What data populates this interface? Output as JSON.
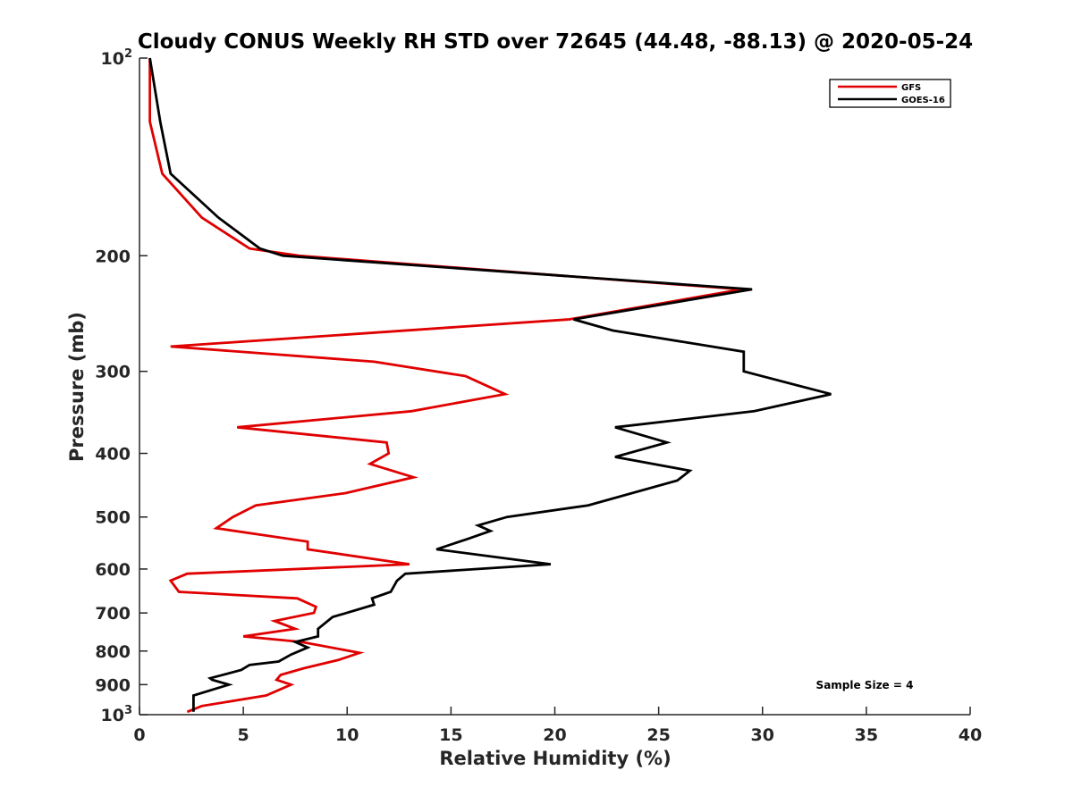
{
  "chart_data": {
    "type": "line",
    "title": "Cloudy CONUS Weekly RH STD over 72645 (44.48, -88.13) @ 2020-05-24",
    "xlabel": "Relative Humidity (%)",
    "ylabel": "Pressure (mb)",
    "xlim": [
      0,
      40
    ],
    "ylim": [
      100,
      1000
    ],
    "y_scale": "log",
    "y_reversed": true,
    "grid": false,
    "legend_position": "top-right",
    "x_ticks": [
      {
        "value": 0,
        "label": "0"
      },
      {
        "value": 5,
        "label": "5"
      },
      {
        "value": 10,
        "label": "10"
      },
      {
        "value": 15,
        "label": "15"
      },
      {
        "value": 20,
        "label": "20"
      },
      {
        "value": 25,
        "label": "25"
      },
      {
        "value": 30,
        "label": "30"
      },
      {
        "value": 35,
        "label": "35"
      },
      {
        "value": 40,
        "label": "40"
      }
    ],
    "y_ticks": [
      {
        "value": 100,
        "base": "10",
        "exp": "2"
      },
      {
        "value": 200,
        "label": "200"
      },
      {
        "value": 300,
        "label": "300"
      },
      {
        "value": 400,
        "label": "400"
      },
      {
        "value": 500,
        "label": "500"
      },
      {
        "value": 600,
        "label": "600"
      },
      {
        "value": 700,
        "label": "700"
      },
      {
        "value": 800,
        "label": "800"
      },
      {
        "value": 900,
        "label": "900"
      },
      {
        "value": 1000,
        "base": "10",
        "exp": "3"
      }
    ],
    "annotation": "Sample Size = 4",
    "series": [
      {
        "name": "GFS",
        "color": "#e00000",
        "points": [
          [
            0.5,
            100
          ],
          [
            0.5,
            125
          ],
          [
            1.1,
            150
          ],
          [
            3.0,
            175
          ],
          [
            5.3,
            195
          ],
          [
            7.7,
            200
          ],
          [
            29.0,
            225
          ],
          [
            20.7,
            250
          ],
          [
            1.5,
            275
          ],
          [
            11.3,
            290
          ],
          [
            15.7,
            305
          ],
          [
            17.6,
            325
          ],
          [
            13.1,
            345
          ],
          [
            4.7,
            365
          ],
          [
            11.9,
            385
          ],
          [
            12.0,
            400
          ],
          [
            11.1,
            415
          ],
          [
            13.2,
            435
          ],
          [
            9.9,
            460
          ],
          [
            5.6,
            480
          ],
          [
            4.5,
            500
          ],
          [
            3.7,
            520
          ],
          [
            8.1,
            545
          ],
          [
            8.1,
            560
          ],
          [
            13.0,
            590
          ],
          [
            2.3,
            610
          ],
          [
            1.5,
            625
          ],
          [
            1.9,
            650
          ],
          [
            7.6,
            665
          ],
          [
            8.5,
            685
          ],
          [
            8.4,
            700
          ],
          [
            6.5,
            720
          ],
          [
            7.5,
            740
          ],
          [
            5.0,
            760
          ],
          [
            7.8,
            775
          ],
          [
            10.6,
            805
          ],
          [
            9.6,
            825
          ],
          [
            7.9,
            850
          ],
          [
            6.8,
            870
          ],
          [
            6.6,
            885
          ],
          [
            7.3,
            900
          ],
          [
            6.1,
            935
          ],
          [
            3.0,
            970
          ],
          [
            2.3,
            990
          ]
        ]
      },
      {
        "name": "GOES-16",
        "color": "#000000",
        "points": [
          [
            0.5,
            100
          ],
          [
            1.0,
            125
          ],
          [
            1.5,
            150
          ],
          [
            3.8,
            175
          ],
          [
            5.8,
            195
          ],
          [
            6.9,
            200
          ],
          [
            29.5,
            225
          ],
          [
            20.9,
            250
          ],
          [
            22.8,
            260
          ],
          [
            29.1,
            280
          ],
          [
            29.1,
            300
          ],
          [
            33.3,
            325
          ],
          [
            29.6,
            345
          ],
          [
            22.9,
            365
          ],
          [
            25.4,
            385
          ],
          [
            22.9,
            405
          ],
          [
            26.5,
            425
          ],
          [
            25.9,
            440
          ],
          [
            21.6,
            480
          ],
          [
            17.7,
            500
          ],
          [
            16.3,
            515
          ],
          [
            16.9,
            525
          ],
          [
            15.8,
            540
          ],
          [
            14.3,
            560
          ],
          [
            19.8,
            590
          ],
          [
            12.8,
            610
          ],
          [
            12.4,
            625
          ],
          [
            12.1,
            650
          ],
          [
            11.2,
            665
          ],
          [
            11.3,
            680
          ],
          [
            9.3,
            710
          ],
          [
            8.6,
            740
          ],
          [
            8.6,
            760
          ],
          [
            7.5,
            775
          ],
          [
            8.1,
            790
          ],
          [
            7.3,
            810
          ],
          [
            6.7,
            830
          ],
          [
            5.3,
            840
          ],
          [
            4.9,
            855
          ],
          [
            3.4,
            880
          ],
          [
            3.5,
            885
          ],
          [
            4.3,
            900
          ],
          [
            2.6,
            935
          ],
          [
            2.6,
            970
          ],
          [
            2.6,
            990
          ]
        ]
      }
    ]
  }
}
